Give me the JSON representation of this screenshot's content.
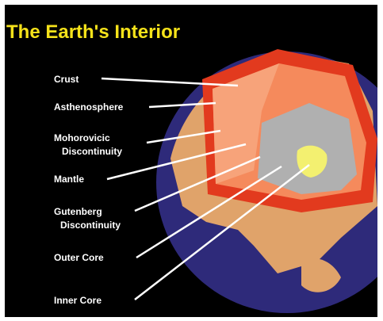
{
  "header": {
    "title": "The Earth's Interior"
  },
  "nodes": [
    {
      "lines": [
        "Crust"
      ]
    },
    {
      "lines": [
        "Asthenosphere"
      ]
    },
    {
      "lines": [
        "Mohorovicic",
        "Discontinuity"
      ]
    },
    {
      "lines": [
        "Mantle"
      ]
    },
    {
      "lines": [
        "Gutenberg",
        "Discontinuity"
      ]
    },
    {
      "lines": [
        "Outer Core"
      ]
    },
    {
      "lines": [
        "Inner Core"
      ]
    }
  ]
}
